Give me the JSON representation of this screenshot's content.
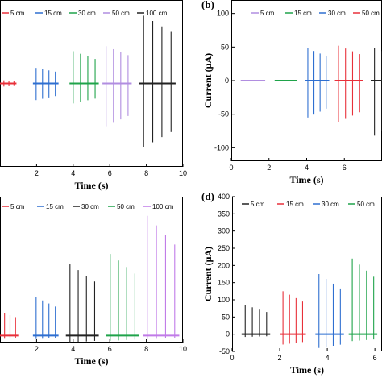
{
  "chart_data": [
    {
      "panel": "a",
      "panel_label": "",
      "type": "line",
      "xlabel": "Time (s)",
      "ylabel": "",
      "xlim": [
        0,
        10
      ],
      "ylim": [
        -150,
        150
      ],
      "x_ticks": [
        "2",
        "4",
        "6",
        "8",
        "10"
      ],
      "y_ticks": [],
      "grid": false,
      "legend_position": "top",
      "series": [
        {
          "name": "5 cm",
          "color": "#e8303a",
          "bursts": [
            {
              "start": -0.2,
              "end": 0.9,
              "pos_amp": 6,
              "neg_amp": 6,
              "spikes": 4
            }
          ]
        },
        {
          "name": "15 cm",
          "color": "#2f6fd0",
          "bursts": [
            {
              "start": 1.8,
              "end": 3.2,
              "pos_amp": 28,
              "neg_amp": 30,
              "spikes": 4
            }
          ]
        },
        {
          "name": "30 cm",
          "color": "#1fa34a",
          "bursts": [
            {
              "start": 3.8,
              "end": 5.4,
              "pos_amp": 58,
              "neg_amp": 36,
              "spikes": 4
            }
          ]
        },
        {
          "name": "50 cm",
          "color": "#b18ee0",
          "bursts": [
            {
              "start": 5.6,
              "end": 7.2,
              "pos_amp": 67,
              "neg_amp": 77,
              "spikes": 4
            }
          ]
        },
        {
          "name": "100 cm",
          "color": "#222222",
          "bursts": [
            {
              "start": 7.6,
              "end": 9.6,
              "pos_amp": 122,
              "neg_amp": 115,
              "spikes": 4
            }
          ]
        }
      ]
    },
    {
      "panel": "b",
      "panel_label": "(b)",
      "type": "line",
      "xlabel": "Time (s)",
      "ylabel": "Current (μA)",
      "xlim": [
        0,
        8
      ],
      "ylim": [
        -120,
        120
      ],
      "x_ticks": [
        "0",
        "2",
        "4",
        "6"
      ],
      "y_ticks": [
        "-100",
        "-50",
        "0",
        "50",
        "100"
      ],
      "grid": false,
      "legend_position": "top",
      "series": [
        {
          "name": "5 cm",
          "color": "#b18ee0",
          "bursts": [
            {
              "start": 0.5,
              "end": 1.8,
              "pos_amp": 1,
              "neg_amp": 1,
              "spikes": 0
            }
          ]
        },
        {
          "name": "15 cm",
          "color": "#1fa34a",
          "bursts": [
            {
              "start": 2.3,
              "end": 3.5,
              "pos_amp": 1,
              "neg_amp": 1,
              "spikes": 0
            }
          ]
        },
        {
          "name": "30 cm",
          "color": "#2f6fd0",
          "bursts": [
            {
              "start": 3.9,
              "end": 5.2,
              "pos_amp": 48,
              "neg_amp": 55,
              "spikes": 4
            }
          ]
        },
        {
          "name": "50 cm",
          "color": "#e8303a",
          "bursts": [
            {
              "start": 5.5,
              "end": 7.0,
              "pos_amp": 52,
              "neg_amp": 62,
              "spikes": 4
            }
          ]
        },
        {
          "name": "",
          "color": "#222222",
          "bursts": [
            {
              "start": 7.4,
              "end": 8.2,
              "pos_amp": 48,
              "neg_amp": 82,
              "spikes": 2
            }
          ]
        }
      ]
    },
    {
      "panel": "c",
      "panel_label": "",
      "type": "line",
      "xlabel": "Time (s)",
      "ylabel": "",
      "xlim": [
        0,
        10
      ],
      "ylim": [
        -20,
        400
      ],
      "x_ticks": [
        "2",
        "4",
        "6",
        "8",
        "10"
      ],
      "y_ticks": [],
      "grid": false,
      "legend_position": "top",
      "series": [
        {
          "name": "5 cm",
          "color": "#e8303a",
          "bursts": [
            {
              "start": -0.2,
              "end": 1.0,
              "pos_amp": 70,
              "neg_amp": 10,
              "spikes": 4
            }
          ]
        },
        {
          "name": "15 cm",
          "color": "#2f6fd0",
          "bursts": [
            {
              "start": 1.8,
              "end": 3.2,
              "pos_amp": 110,
              "neg_amp": 10,
              "spikes": 4
            }
          ]
        },
        {
          "name": "30 cm",
          "color": "#222222",
          "bursts": [
            {
              "start": 3.6,
              "end": 5.4,
              "pos_amp": 205,
              "neg_amp": 20,
              "spikes": 4
            }
          ]
        },
        {
          "name": "50 cm",
          "color": "#1fa34a",
          "bursts": [
            {
              "start": 5.8,
              "end": 7.6,
              "pos_amp": 235,
              "neg_amp": 15,
              "spikes": 4
            }
          ]
        },
        {
          "name": "100 cm",
          "color": "#c07be8",
          "bursts": [
            {
              "start": 7.8,
              "end": 9.8,
              "pos_amp": 345,
              "neg_amp": 10,
              "spikes": 4
            }
          ]
        }
      ]
    },
    {
      "panel": "d",
      "panel_label": "(d)",
      "type": "line",
      "xlabel": "Time (s)",
      "ylabel": "Current (μA)",
      "xlim": [
        0,
        6.3
      ],
      "ylim": [
        -50,
        400
      ],
      "x_ticks": [
        "0",
        "2",
        "4",
        "6"
      ],
      "y_ticks": [
        "-50",
        "0",
        "50",
        "100",
        "150",
        "200",
        "250",
        "300",
        "350",
        "400"
      ],
      "grid": false,
      "legend_position": "top",
      "series": [
        {
          "name": "5 cm",
          "color": "#222222",
          "bursts": [
            {
              "start": 0.4,
              "end": 1.6,
              "pos_amp": 85,
              "neg_amp": 8,
              "spikes": 4
            }
          ]
        },
        {
          "name": "15 cm",
          "color": "#e8303a",
          "bursts": [
            {
              "start": 2.0,
              "end": 3.1,
              "pos_amp": 125,
              "neg_amp": 30,
              "spikes": 4
            }
          ]
        },
        {
          "name": "30 cm",
          "color": "#2f6fd0",
          "bursts": [
            {
              "start": 3.5,
              "end": 4.7,
              "pos_amp": 175,
              "neg_amp": 40,
              "spikes": 4
            }
          ]
        },
        {
          "name": "50 cm",
          "color": "#1fa34a",
          "bursts": [
            {
              "start": 4.9,
              "end": 6.1,
              "pos_amp": 220,
              "neg_amp": 20,
              "spikes": 4
            }
          ]
        }
      ]
    }
  ]
}
